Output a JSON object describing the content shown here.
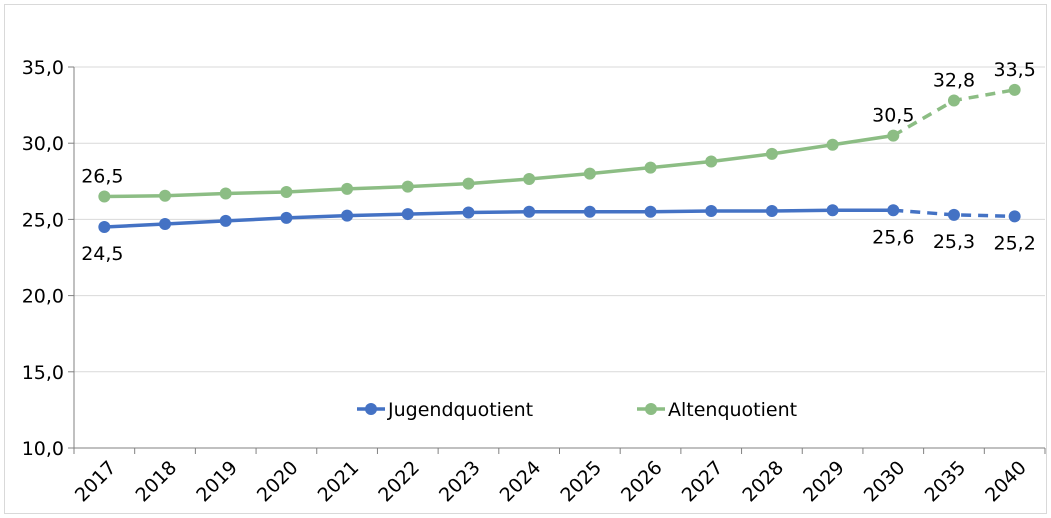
{
  "chart_data": {
    "type": "line",
    "categories": [
      "2017",
      "2018",
      "2019",
      "2020",
      "2021",
      "2022",
      "2023",
      "2024",
      "2025",
      "2026",
      "2027",
      "2028",
      "2029",
      "2030",
      "2035",
      "2040"
    ],
    "series": [
      {
        "name": "Jugendquotient",
        "color": "#4472C4",
        "values": [
          24.5,
          24.7,
          24.9,
          25.1,
          25.25,
          25.35,
          25.45,
          25.5,
          25.5,
          25.5,
          25.55,
          25.55,
          25.6,
          25.6,
          25.3,
          25.2
        ],
        "dashed_from_index": 13,
        "data_labels": [
          {
            "index": 0,
            "text": "24,5",
            "position": "below"
          },
          {
            "index": 13,
            "text": "25,6",
            "position": "below"
          },
          {
            "index": 14,
            "text": "25,3",
            "position": "below"
          },
          {
            "index": 15,
            "text": "25,2",
            "position": "below"
          }
        ]
      },
      {
        "name": "Altenquotient",
        "color": "#8CBD84",
        "values": [
          26.5,
          26.55,
          26.7,
          26.8,
          27.0,
          27.15,
          27.35,
          27.65,
          28.0,
          28.4,
          28.8,
          29.3,
          29.9,
          30.5,
          32.8,
          33.5
        ],
        "dashed_from_index": 13,
        "data_labels": [
          {
            "index": 0,
            "text": "26,5",
            "position": "above"
          },
          {
            "index": 13,
            "text": "30,5",
            "position": "above"
          },
          {
            "index": 14,
            "text": "32,8",
            "position": "above"
          },
          {
            "index": 15,
            "text": "33,5",
            "position": "above"
          }
        ]
      }
    ],
    "y_ticks": [
      "10,0",
      "15,0",
      "20,0",
      "25,0",
      "30,0",
      "35,0"
    ],
    "y_tick_values": [
      10,
      15,
      20,
      25,
      30,
      35
    ],
    "ylim": [
      10,
      35
    ],
    "grid": true,
    "legend_position": "bottom-center inside plot",
    "title": "",
    "xlabel": "",
    "ylabel": ""
  }
}
